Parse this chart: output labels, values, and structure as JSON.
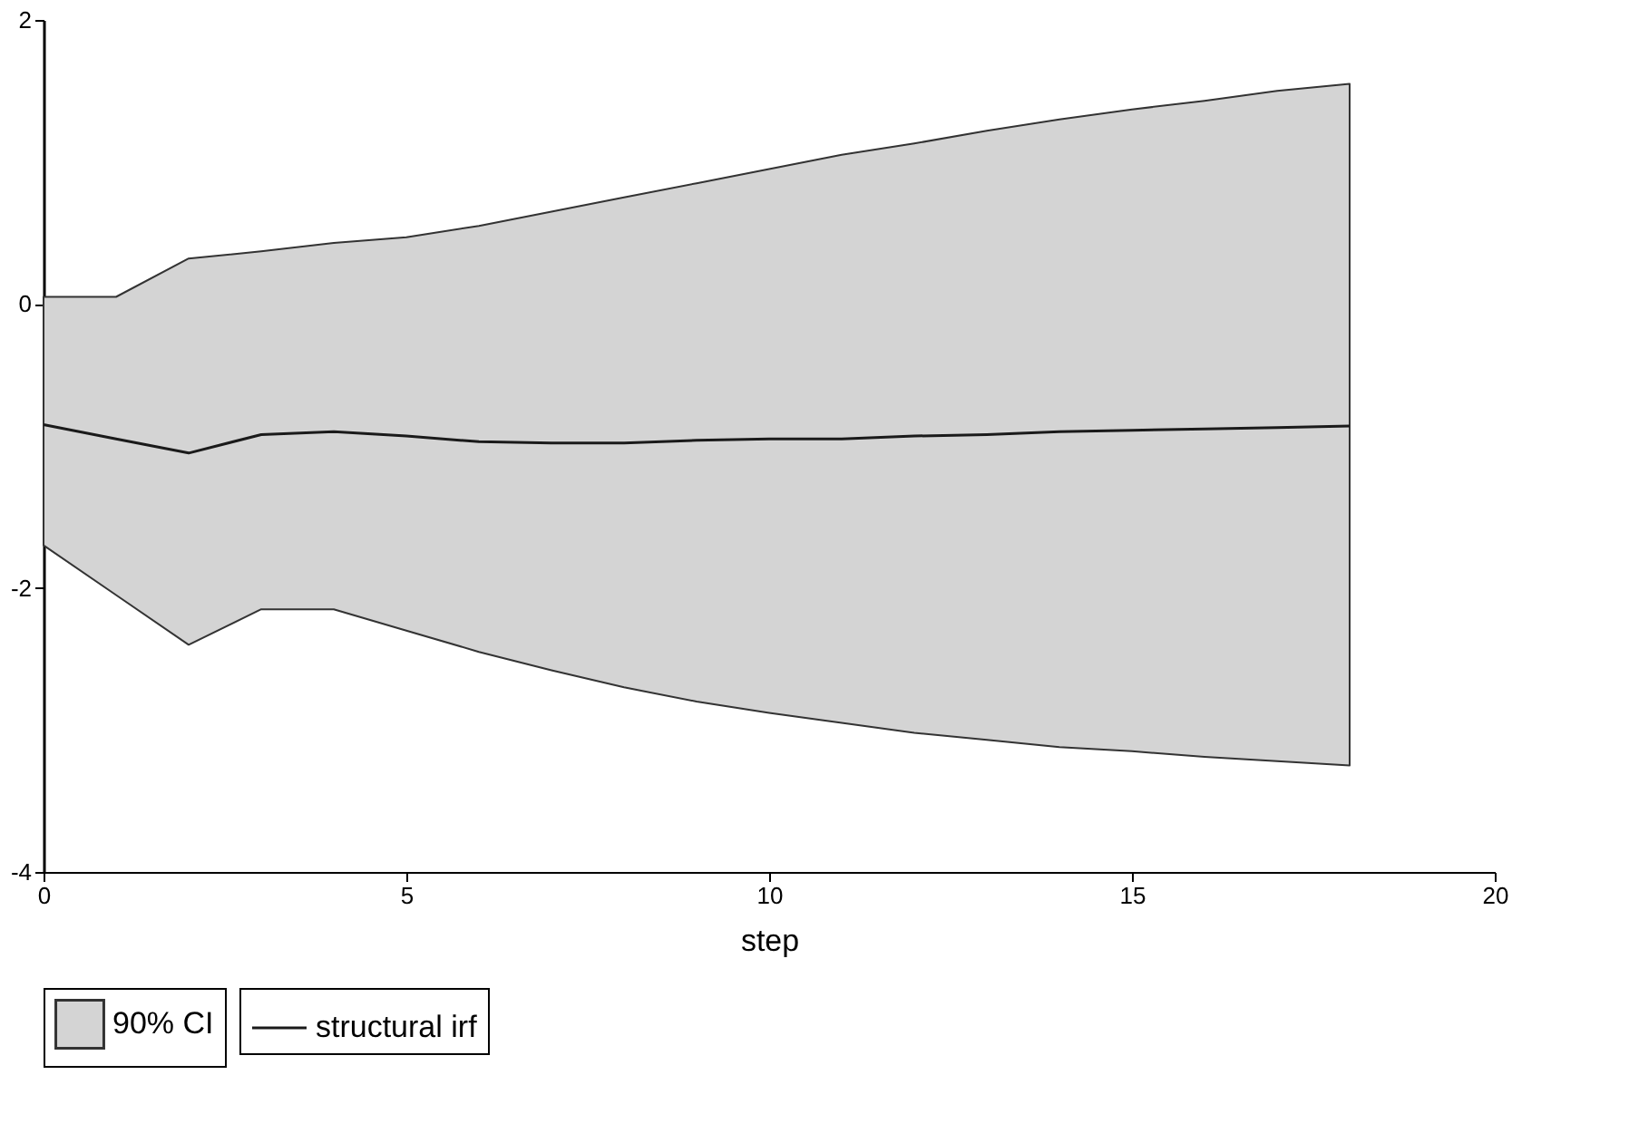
{
  "chart_data": {
    "type": "line",
    "xlabel": "step",
    "x": [
      0,
      1,
      2,
      3,
      4,
      5,
      6,
      7,
      8,
      9,
      10,
      11,
      12,
      13,
      14,
      15,
      16,
      17,
      18
    ],
    "series": [
      {
        "name": "90% CI",
        "type": "area",
        "color": "#d4d4d4",
        "values": [
          null,
          null,
          null,
          null,
          null,
          null,
          null,
          null,
          null,
          null,
          null,
          null,
          null,
          null,
          null,
          null,
          null,
          null,
          null
        ],
        "lower": [
          -1.7,
          -2.05,
          -2.4,
          -2.15,
          -2.15,
          -2.3,
          -2.45,
          -2.58,
          -2.7,
          -2.8,
          -2.88,
          -2.95,
          -3.02,
          -3.07,
          -3.12,
          -3.15,
          -3.19,
          -3.22,
          -3.25
        ],
        "upper": [
          0.05,
          0.05,
          0.32,
          0.37,
          0.43,
          0.47,
          0.55,
          0.65,
          0.75,
          0.85,
          0.95,
          1.05,
          1.13,
          1.22,
          1.3,
          1.37,
          1.43,
          1.5,
          1.55
        ]
      },
      {
        "name": "structural irf",
        "color": "#1a1a1a",
        "values": [
          -0.85,
          -0.95,
          -1.05,
          -0.92,
          -0.9,
          -0.93,
          -0.97,
          -0.98,
          -0.98,
          -0.96,
          -0.95,
          -0.95,
          -0.93,
          -0.92,
          -0.9,
          -0.89,
          -0.88,
          -0.87,
          -0.86
        ]
      }
    ],
    "xlim": [
      0,
      20
    ],
    "xticks": [
      0,
      5,
      10,
      15,
      20
    ],
    "ylim": [
      -4,
      2
    ],
    "yticks": [
      {
        "value": -4,
        "label": "-4"
      },
      {
        "value": -2,
        "label": "-2"
      },
      0,
      2
    ],
    "grid": false,
    "legend": "bottom",
    "line_style": "solid",
    "marker": "none"
  }
}
